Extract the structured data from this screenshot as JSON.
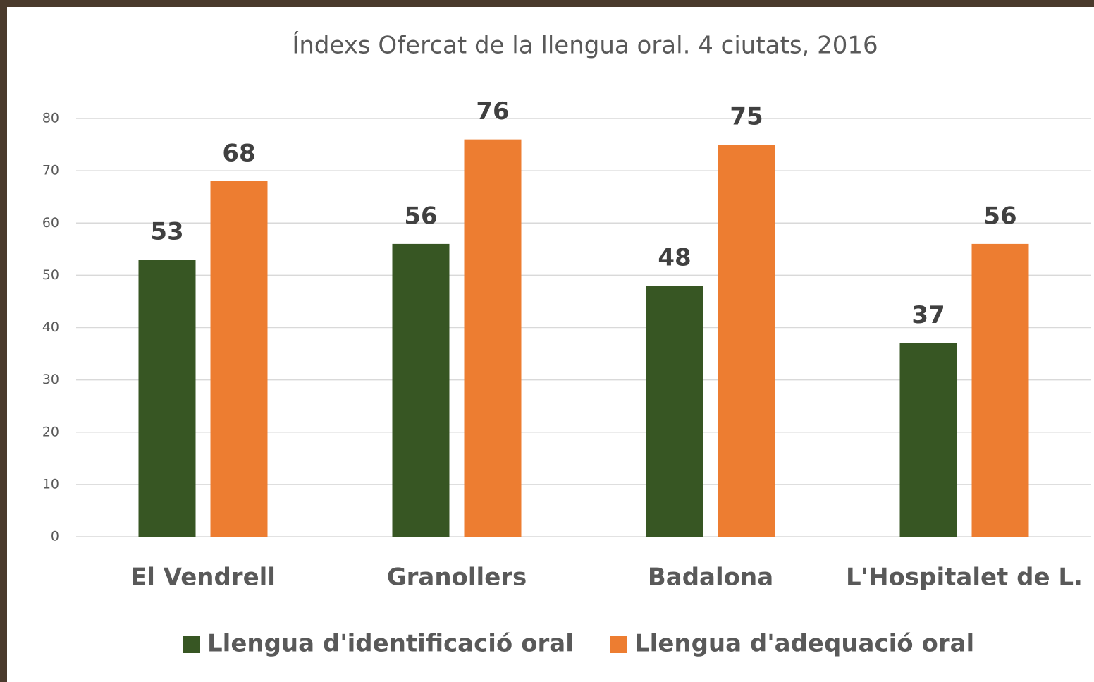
{
  "chart_data": {
    "type": "bar",
    "title": "Índexs Ofercat de la llengua oral. 4 ciutats, 2016",
    "categories": [
      "El Vendrell",
      "Granollers",
      "Badalona",
      "L'Hospitalet de L."
    ],
    "series": [
      {
        "name": "Llengua d'identificació oral",
        "color": "#375623",
        "values": [
          53,
          56,
          48,
          37
        ]
      },
      {
        "name": "Llengua d'adequació oral",
        "color": "#ed7d31",
        "values": [
          68,
          76,
          75,
          56
        ]
      }
    ],
    "ylim": [
      0,
      80
    ],
    "yticks": [
      0,
      10,
      20,
      30,
      40,
      50,
      60,
      70,
      80
    ],
    "grid": true,
    "legend": "bottom"
  }
}
